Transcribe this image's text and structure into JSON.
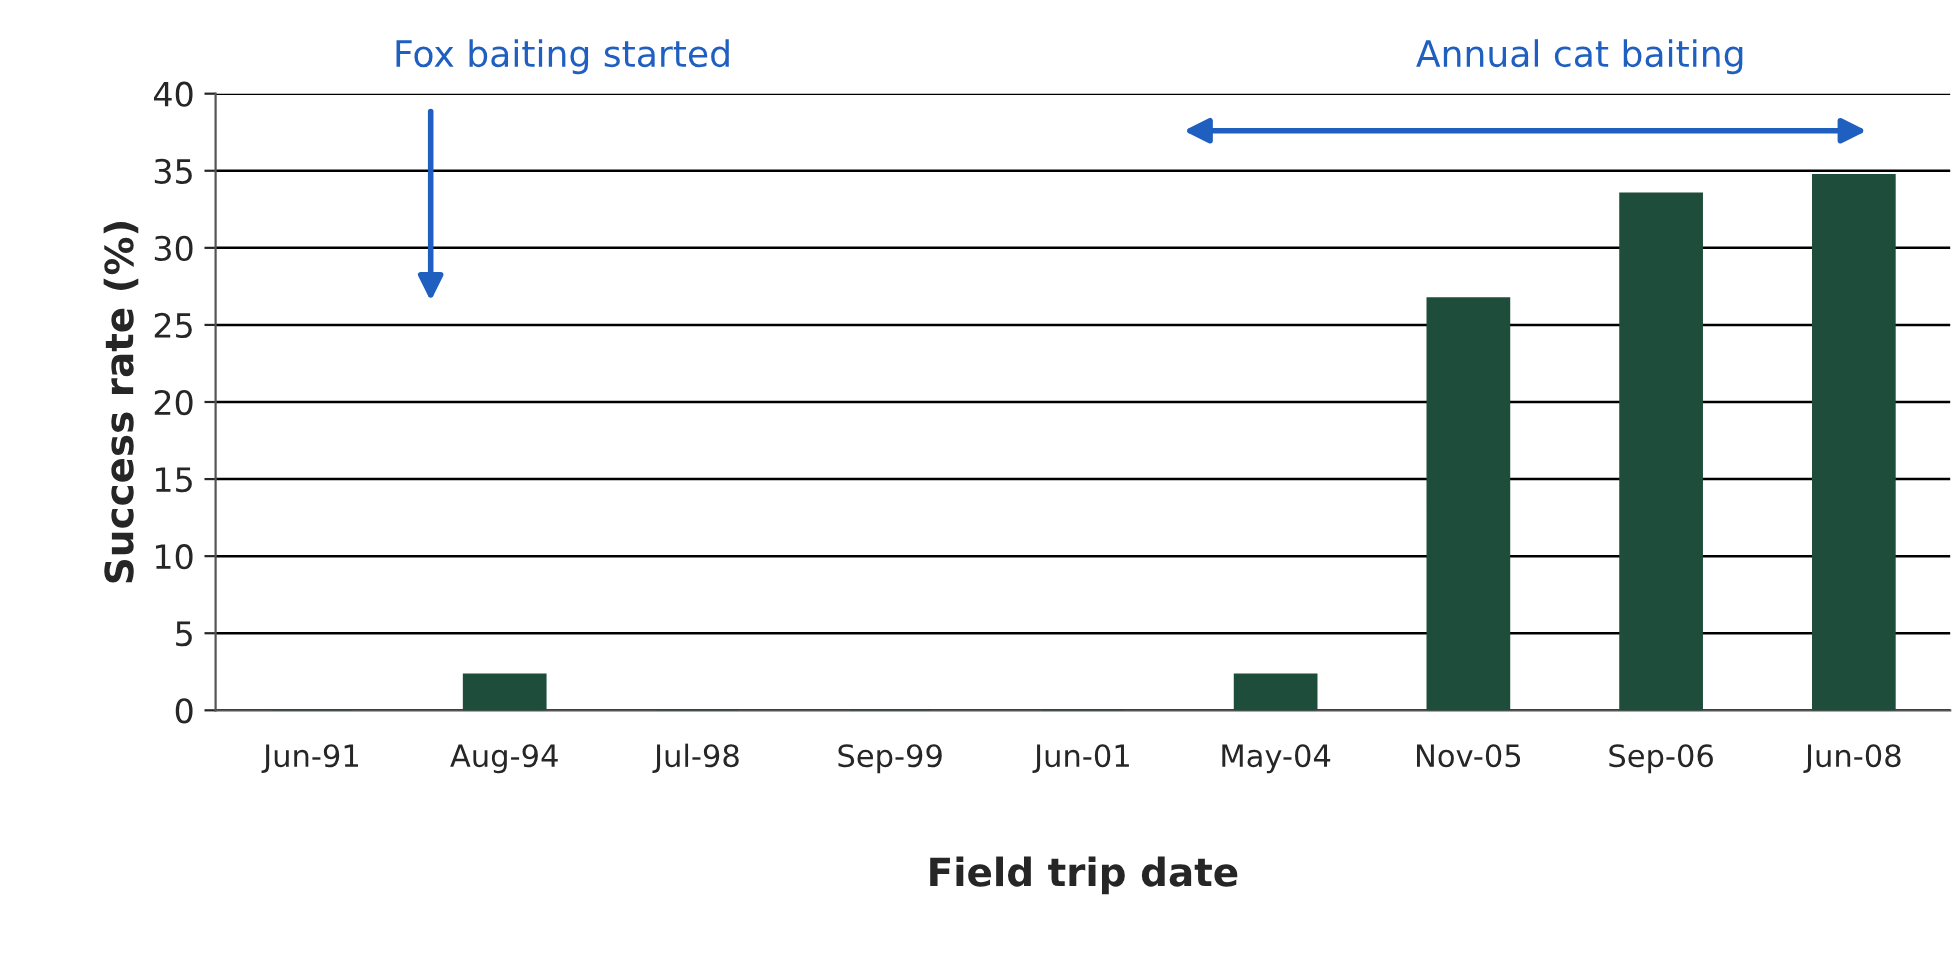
{
  "chart_data": {
    "type": "bar",
    "xlabel": "Field trip date",
    "ylabel": "Success rate (%)",
    "categories": [
      "Jun-91",
      "Aug-94",
      "Jul-98",
      "Sep-99",
      "Jun-01",
      "May-04",
      "Nov-05",
      "Sep-06",
      "Jun-08"
    ],
    "values": [
      0,
      2.3,
      0,
      0,
      0,
      2.3,
      26.7,
      33.5,
      34.7
    ],
    "color": "#1e4d3b",
    "ylim": [
      0,
      40
    ],
    "yticks": [
      0,
      5,
      10,
      15,
      20,
      25,
      30,
      35,
      40
    ],
    "grid": "y",
    "annotations": [
      "Fox baiting started",
      "Annual cat baiting"
    ]
  }
}
